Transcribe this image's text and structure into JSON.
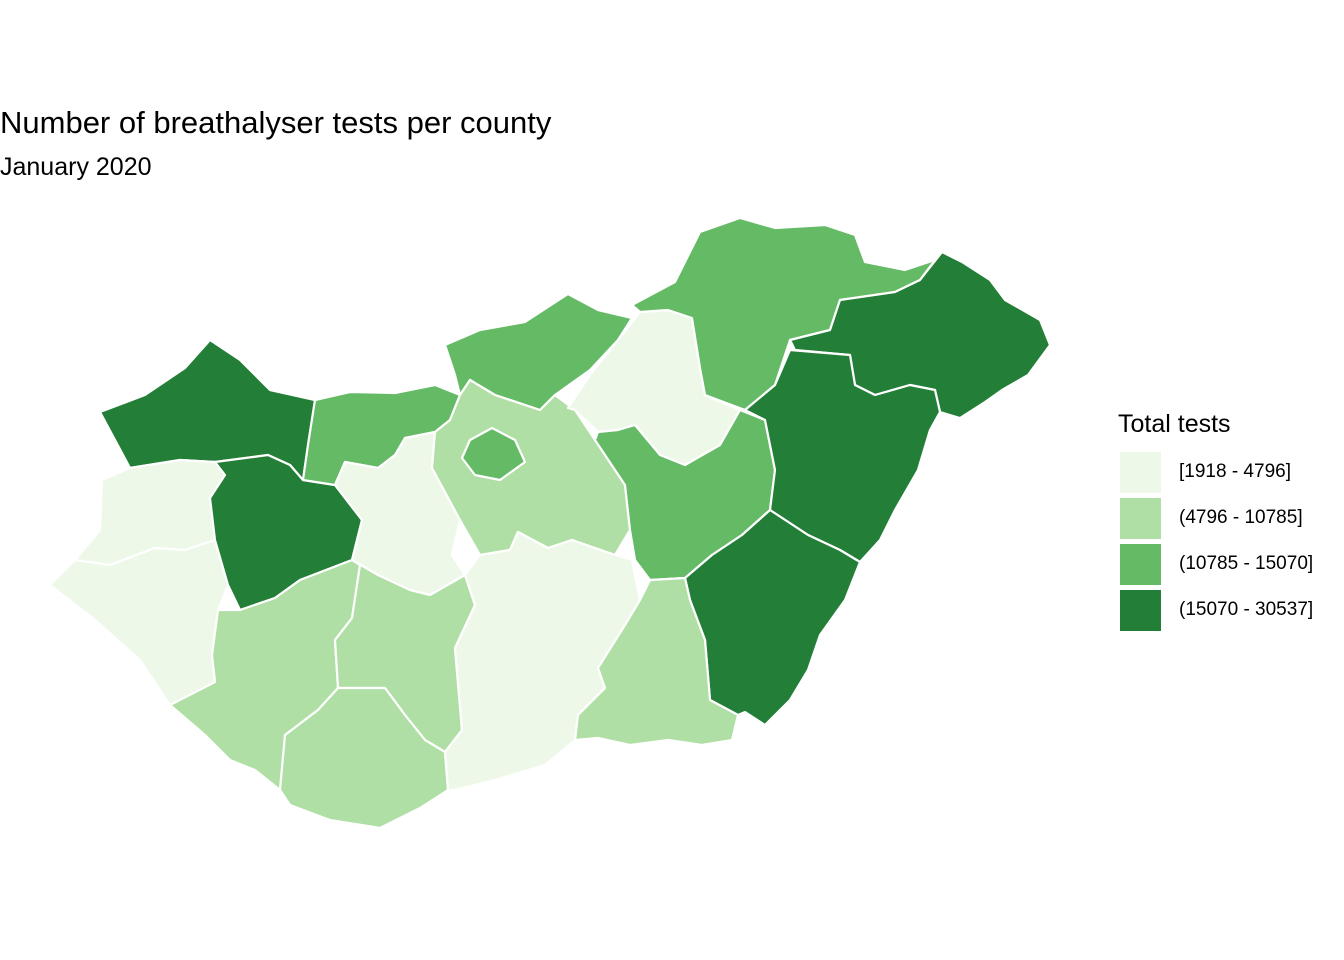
{
  "title": "Number of breathalyser tests per county",
  "subtitle": "January 2020",
  "legend": {
    "title": "Total tests",
    "items": [
      {
        "label": "[1918 - 4796]",
        "color": "#EDF8E9"
      },
      {
        "label": "(4796 - 10785]",
        "color": "#AFDFA4"
      },
      {
        "label": "(10785 - 15070]",
        "color": "#64BA65"
      },
      {
        "label": "(15070 - 30537]",
        "color": "#237E37"
      }
    ]
  },
  "map": {
    "background": "#FFFFFF",
    "border_color": "#FFFFFF",
    "regions": [
      {
        "region": "north-west",
        "class": 3
      },
      {
        "region": "west-1",
        "class": 0
      },
      {
        "region": "west-2",
        "class": 0
      },
      {
        "region": "south-west",
        "class": 3
      },
      {
        "region": "west-central",
        "class": 1
      },
      {
        "region": "north-central-1",
        "class": 2
      },
      {
        "region": "central-west",
        "class": 0
      },
      {
        "region": "north-central-2",
        "class": 1
      },
      {
        "region": "central",
        "class": 1
      },
      {
        "region": "capital",
        "class": 2
      },
      {
        "region": "south-central-1",
        "class": 1
      },
      {
        "region": "south",
        "class": 2
      },
      {
        "region": "south-central-2",
        "class": 0
      },
      {
        "region": "north-1",
        "class": 0
      },
      {
        "region": "north-east-1",
        "class": 2
      },
      {
        "region": "east-central",
        "class": 2
      },
      {
        "region": "north-east-2",
        "class": 3
      },
      {
        "region": "east-1",
        "class": 3
      },
      {
        "region": "east-2",
        "class": 3
      },
      {
        "region": "south-east",
        "class": 1
      }
    ]
  }
}
